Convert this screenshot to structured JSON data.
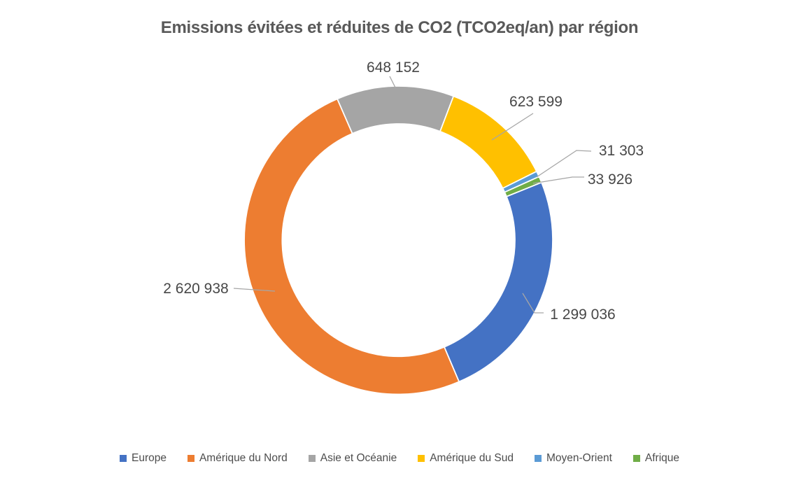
{
  "chart_data": {
    "type": "doughnut",
    "title": "Emissions évitées et réduites de CO2 (TCO2eq/an) par région",
    "legend_position": "bottom",
    "rotation_deg": 68,
    "hole_ratio": 0.755,
    "grid": false,
    "segments": [
      {
        "name": "Europe",
        "value": 1299036,
        "label": "1 299 036",
        "color": "#4472C4"
      },
      {
        "name": "Amérique du Nord",
        "value": 2620938,
        "label": "2 620 938",
        "color": "#ED7D31"
      },
      {
        "name": "Asie et Océanie",
        "value": 648152,
        "label": "648 152",
        "color": "#A5A5A5"
      },
      {
        "name": "Amérique du Sud",
        "value": 623599,
        "label": "623 599",
        "color": "#FFC000"
      },
      {
        "name": "Moyen-Orient",
        "value": 31303,
        "label": "31 303",
        "color": "#5B9BD5"
      },
      {
        "name": "Afrique",
        "value": 33926,
        "label": "33 926",
        "color": "#70AD47"
      }
    ],
    "leader_line_color": "#a6a6a6",
    "slice_border_color": "#ffffff"
  }
}
